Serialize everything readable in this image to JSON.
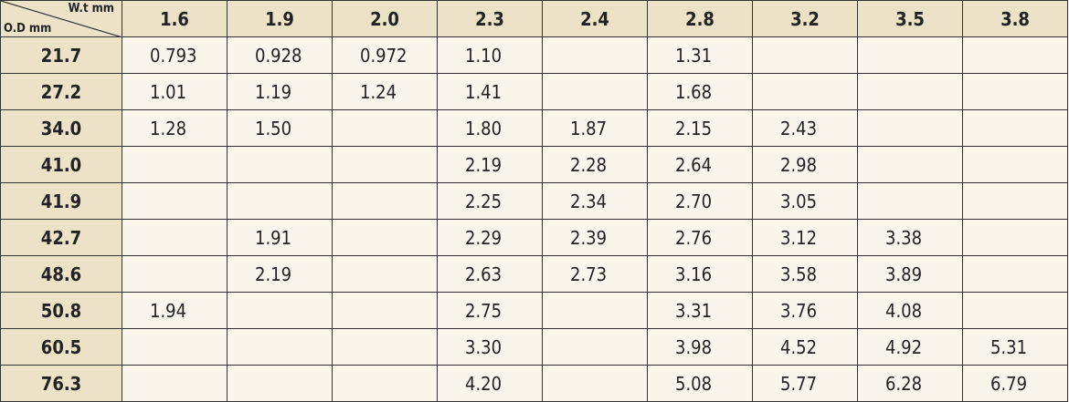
{
  "table": {
    "corner": {
      "column_label": "W.t mm",
      "row_label": "O.D mm"
    },
    "columns": [
      "1.6",
      "1.9",
      "2.0",
      "2.3",
      "2.4",
      "2.8",
      "3.2",
      "3.5",
      "3.8"
    ],
    "rows": [
      {
        "od": "21.7",
        "values": [
          "0.793",
          "0.928",
          "0.972",
          "1.10",
          null,
          "1.31",
          null,
          null,
          null
        ]
      },
      {
        "od": "27.2",
        "values": [
          "1.01",
          "1.19",
          "1.24",
          "1.41",
          null,
          "1.68",
          null,
          null,
          null
        ]
      },
      {
        "od": "34.0",
        "values": [
          "1.28",
          "1.50",
          null,
          "1.80",
          "1.87",
          "2.15",
          "2.43",
          null,
          null
        ]
      },
      {
        "od": "41.0",
        "values": [
          null,
          null,
          null,
          "2.19",
          "2.28",
          "2.64",
          "2.98",
          null,
          null
        ]
      },
      {
        "od": "41.9",
        "values": [
          null,
          null,
          null,
          "2.25",
          "2.34",
          "2.70",
          "3.05",
          null,
          null
        ]
      },
      {
        "od": "42.7",
        "values": [
          null,
          "1.91",
          null,
          "2.29",
          "2.39",
          "2.76",
          "3.12",
          "3.38",
          null
        ]
      },
      {
        "od": "48.6",
        "values": [
          null,
          "2.19",
          null,
          "2.63",
          "2.73",
          "3.16",
          "3.58",
          "3.89",
          null
        ]
      },
      {
        "od": "50.8",
        "values": [
          "1.94",
          null,
          null,
          "2.75",
          null,
          "3.31",
          "3.76",
          "4.08",
          null
        ]
      },
      {
        "od": "60.5",
        "values": [
          null,
          null,
          null,
          "3.30",
          null,
          "3.98",
          "4.52",
          "4.92",
          "5.31"
        ]
      },
      {
        "od": "76.3",
        "values": [
          null,
          null,
          null,
          "4.20",
          null,
          "5.08",
          "5.77",
          "6.28",
          "6.79"
        ]
      }
    ]
  }
}
